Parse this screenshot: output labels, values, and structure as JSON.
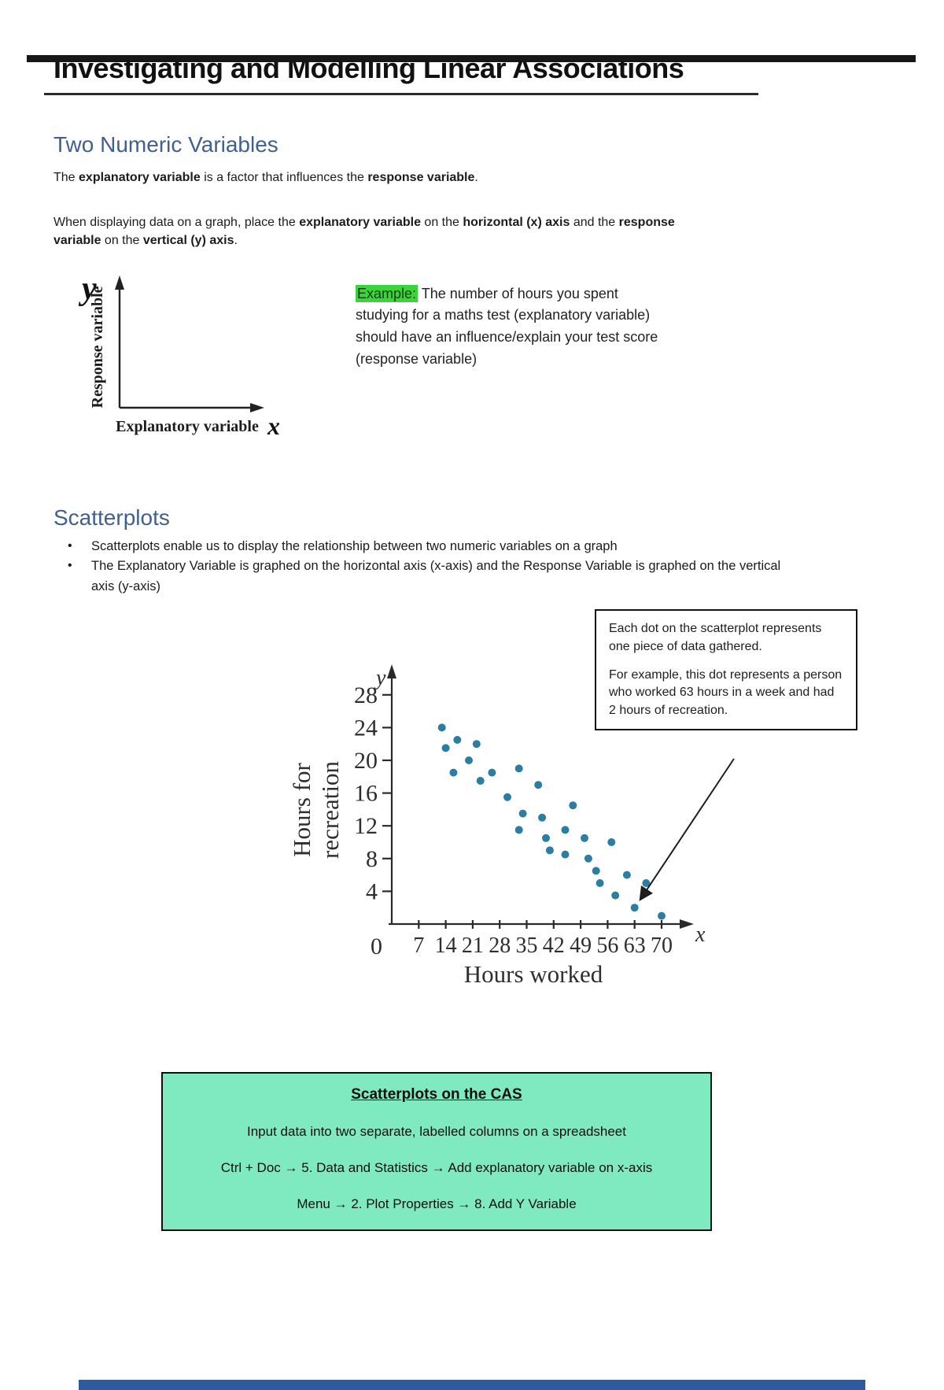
{
  "page": {
    "title": "Investigating and Modelling Linear Associations",
    "colors": {
      "heading_blue": "#41608f",
      "highlight_green": "#3bd53b",
      "highlight_text": "#143f14",
      "cas_box_green": "#7fe9c0",
      "dot_teal": "#2b7ea1",
      "bottom_bar_blue": "#2e5b9f"
    }
  },
  "two_numeric": {
    "heading": "Two Numeric Variables",
    "para1": [
      {
        "t": "The ",
        "b": false
      },
      {
        "t": "explanatory variable",
        "b": true
      },
      {
        "t": " is a factor that influences the ",
        "b": false
      },
      {
        "t": "response variable",
        "b": true
      },
      {
        "t": ".",
        "b": false
      }
    ],
    "para2": [
      {
        "t": "When displaying data on a graph, place the ",
        "b": false
      },
      {
        "t": "explanatory variable",
        "b": true
      },
      {
        "t": " on the ",
        "b": false
      },
      {
        "t": "horizontal (x) axis",
        "b": true
      },
      {
        "t": " and the ",
        "b": false
      },
      {
        "t": "response variable",
        "b": true
      },
      {
        "t": " on the ",
        "b": false
      },
      {
        "t": "vertical (y) axis",
        "b": true
      },
      {
        "t": ".",
        "b": false
      }
    ],
    "axes_diagram": {
      "y_letter": "y",
      "x_letter": "x",
      "y_label": "Response variable",
      "x_label": "Explanatory variable"
    },
    "example_runs": [
      {
        "t": "Example:",
        "hl": true
      },
      {
        "t": " The number of hours you spent studying for a maths test (explanatory variable) should have an influence/explain your test score (response variable)"
      }
    ]
  },
  "scatterplots": {
    "heading": "Scatterplots",
    "bullets": [
      "Scatterplots enable us to display the relationship between two numeric variables on a graph",
      "The Explanatory Variable is graphed on the horizontal axis (x-axis) and the Response Variable is graphed on the vertical axis (y-axis)"
    ],
    "callout": {
      "para1": "Each dot on the scatterplot represents one piece of data gathered.",
      "para2": "For example, this dot represents a person who worked 63 hours in a week and had 2 hours of recreation."
    },
    "cas_box": {
      "title": "Scatterplots on the CAS",
      "lines": [
        "Input data into two separate, labelled columns on a spreadsheet",
        "Ctrl + Doc → 5. Data and Statistics → Add explanatory variable on x-axis",
        "Menu → 2. Plot Properties → 8. Add Y Variable"
      ]
    }
  },
  "chart_data": {
    "type": "scatter",
    "title": "",
    "xlabel": "Hours worked",
    "ylabel": "Hours for recreation",
    "ylabel_lines": [
      "Hours for",
      "recreation"
    ],
    "axis_letter_x": "x",
    "axis_letter_y": "y",
    "origin_label": "0",
    "x_ticks": [
      7,
      14,
      21,
      28,
      35,
      42,
      49,
      56,
      63,
      70
    ],
    "y_ticks": [
      4,
      8,
      12,
      16,
      20,
      24,
      28
    ],
    "xlim": [
      0,
      73
    ],
    "ylim": [
      0,
      30
    ],
    "grid": false,
    "highlighted_point": {
      "x": 63,
      "y": 2,
      "note": "person who worked 63 hours, 2 hours recreation"
    },
    "points": [
      [
        13,
        24
      ],
      [
        14,
        21.5
      ],
      [
        17,
        22.5
      ],
      [
        16,
        18.5
      ],
      [
        20,
        20
      ],
      [
        22,
        22
      ],
      [
        23,
        17.5
      ],
      [
        26,
        18.5
      ],
      [
        30,
        15.5
      ],
      [
        33,
        19
      ],
      [
        33,
        11.5
      ],
      [
        34,
        13.5
      ],
      [
        38,
        17
      ],
      [
        39,
        13
      ],
      [
        40,
        10.5
      ],
      [
        41,
        9
      ],
      [
        45,
        11.5
      ],
      [
        45,
        8.5
      ],
      [
        47,
        14.5
      ],
      [
        50,
        10.5
      ],
      [
        51,
        8
      ],
      [
        53,
        6.5
      ],
      [
        54,
        5
      ],
      [
        57,
        10
      ],
      [
        58,
        3.5
      ],
      [
        61,
        6
      ],
      [
        63,
        2
      ],
      [
        66,
        5
      ],
      [
        70,
        1
      ]
    ]
  }
}
